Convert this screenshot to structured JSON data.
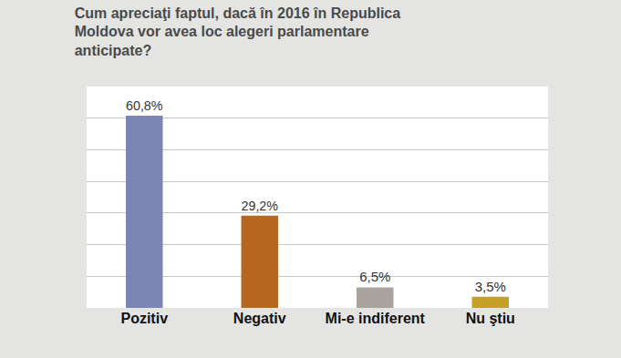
{
  "chart_data": {
    "type": "bar",
    "title": "Cum apreciaţi faptul, dacă în 2016 în Republica Moldova vor avea loc alegeri parlamentare anticipate?",
    "categories": [
      "Pozitiv",
      "Negativ",
      "Mi-e indiferent",
      "Nu ştiu"
    ],
    "values": [
      60.8,
      29.2,
      6.5,
      3.5
    ],
    "value_labels": [
      "60,8%",
      "29,2%",
      "6,5%",
      "3,5%"
    ],
    "colors": [
      "#7b86b3",
      "#b5661f",
      "#a8a39c",
      "#c6a12a"
    ],
    "ylim": [
      0,
      70
    ],
    "yticks": [
      0,
      10,
      20,
      30,
      40,
      50,
      60,
      70
    ],
    "grid": true,
    "data_labels": true,
    "tick_labels": "x"
  }
}
